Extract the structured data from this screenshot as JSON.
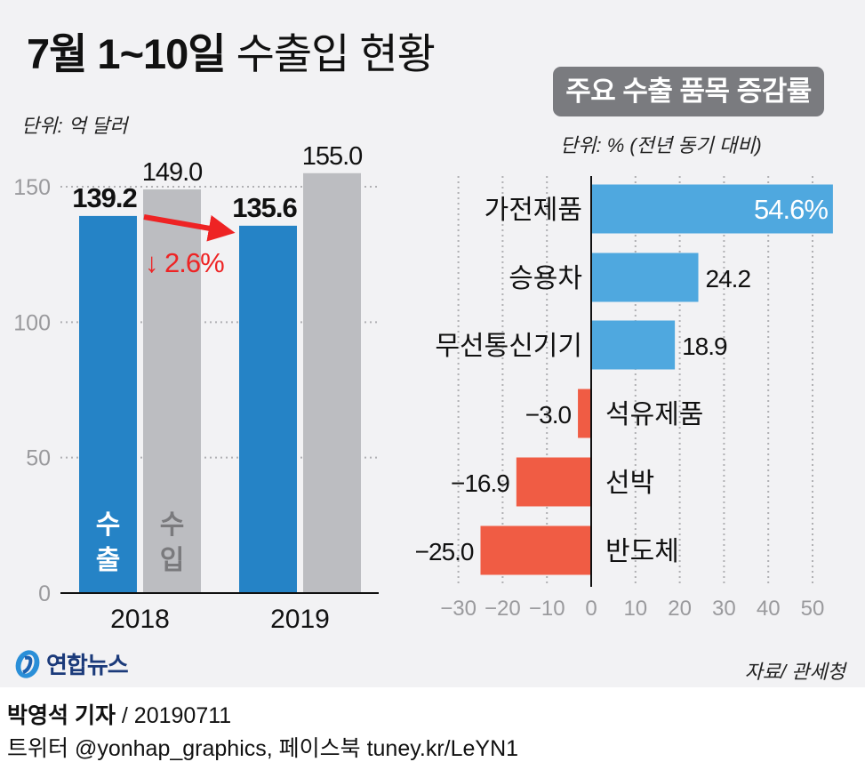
{
  "title": {
    "bold": "7월 1~10일",
    "light": "수출입 현황"
  },
  "publisher": "연합뉴스",
  "source": "자료/ 관세청",
  "footer": {
    "byline": "박영석 기자",
    "separator": " / ",
    "date": "20190711",
    "social": "트위터 @yonhap_graphics, 페이스북 tuney.kr/LeYN1"
  },
  "colors": {
    "export": "#2583c6",
    "import": "#bcbdc1",
    "positive": "#4fa8df",
    "negative": "#f05c44",
    "highlight": "#ee2324",
    "badge": "#7a7b7f"
  },
  "chart_data": [
    {
      "type": "bar",
      "title": "7월 1~10일 수출입 현황",
      "unit_label": "단위: 억 달러",
      "xlabel": "",
      "ylabel": "",
      "categories": [
        "2018",
        "2019"
      ],
      "series": [
        {
          "name": "수출",
          "bar_label": [
            "수",
            "출"
          ],
          "values": [
            139.2,
            135.6
          ],
          "labels": [
            "139.2",
            "135.6"
          ]
        },
        {
          "name": "수입",
          "bar_label": [
            "수",
            "입"
          ],
          "values": [
            149.0,
            155.0
          ],
          "labels": [
            "149.0",
            "155.0"
          ]
        }
      ],
      "ylim": [
        0,
        155
      ],
      "yticks": [
        0,
        50,
        100,
        150
      ],
      "grid": true,
      "annotation": {
        "text": "2.6%",
        "direction": "down",
        "from": "2018 수출",
        "to": "2019 수출"
      }
    },
    {
      "type": "bar",
      "orientation": "horizontal",
      "title": "주요 수출 품목 증감률",
      "unit_label": "단위: % (전년 동기 대비)",
      "categories": [
        "가전제품",
        "승용차",
        "무선통신기기",
        "석유제품",
        "선박",
        "반도체"
      ],
      "values": [
        54.6,
        24.2,
        18.9,
        -3.0,
        -16.9,
        -25.0
      ],
      "labels": [
        "54.6%",
        "24.2",
        "18.9",
        "−3.0",
        "−16.9",
        "−25.0"
      ],
      "xlim": [
        -30,
        55
      ],
      "xticks": [
        -30,
        -20,
        -10,
        0,
        10,
        20,
        30,
        40,
        50
      ],
      "xtick_labels": [
        "−30",
        "−20",
        "−10",
        "0",
        "10",
        "20",
        "30",
        "40",
        "50"
      ],
      "grid": true
    }
  ]
}
